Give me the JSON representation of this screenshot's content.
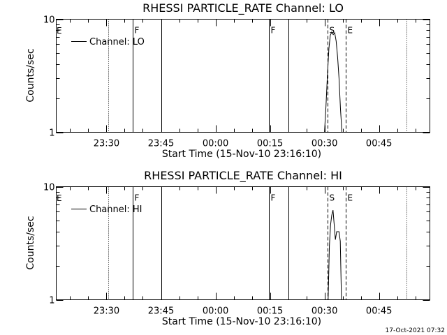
{
  "chart_data": [
    {
      "type": "line",
      "title": "RHESSI PARTICLE_RATE Channel: LO",
      "xlabel": "Start Time (15-Nov-10 23:16:10)",
      "ylabel": "Counts/sec",
      "y_scale": "log",
      "ylim": [
        1,
        10
      ],
      "y_ticks": [
        {
          "value": 1,
          "label": "1"
        },
        {
          "value": 10,
          "label": "10"
        }
      ],
      "xlim": [
        "23:16:10",
        "00:59:00"
      ],
      "x_ticks": [
        "23:30",
        "23:45",
        "00:00",
        "00:15",
        "00:30",
        "00:45"
      ],
      "legend": {
        "label": "Channel: LO",
        "placement": "top-left"
      },
      "series": [
        {
          "name": "Channel: LO",
          "x": [
            "00:30:00",
            "00:30:24",
            "00:30:48",
            "00:31:12",
            "00:31:36",
            "00:32:00",
            "00:32:24",
            "00:32:48",
            "00:33:12",
            "00:33:36",
            "00:34:00",
            "00:34:24",
            "00:34:48"
          ],
          "y": [
            1.0,
            1.7,
            3.2,
            5.5,
            7.2,
            7.7,
            7.3,
            7.6,
            6.4,
            4.6,
            3.0,
            1.6,
            1.0
          ]
        }
      ],
      "vertical_lines": [
        {
          "time": "23:30:30",
          "style": "dotted"
        },
        {
          "time": "23:37:15",
          "style": "solid",
          "label": "F"
        },
        {
          "time": "23:45:00",
          "style": "solid"
        },
        {
          "time": "00:14:45",
          "style": "solid",
          "label": "F"
        },
        {
          "time": "00:20:00",
          "style": "solid"
        },
        {
          "time": "00:30:45",
          "style": "dashed",
          "label": "S"
        },
        {
          "time": "00:35:45",
          "style": "dashed",
          "label": "E"
        },
        {
          "time": "00:52:30",
          "style": "dotted"
        }
      ],
      "left_edge_label": "E"
    },
    {
      "type": "line",
      "title": "RHESSI PARTICLE_RATE Channel: HI",
      "xlabel": "Start Time (15-Nov-10 23:16:10)",
      "ylabel": "Counts/sec",
      "y_scale": "log",
      "ylim": [
        1,
        10
      ],
      "y_ticks": [
        {
          "value": 1,
          "label": "1"
        },
        {
          "value": 10,
          "label": "10"
        }
      ],
      "xlim": [
        "23:16:10",
        "00:59:00"
      ],
      "x_ticks": [
        "23:30",
        "23:45",
        "00:00",
        "00:15",
        "00:30",
        "00:45"
      ],
      "legend": {
        "label": "Channel: HI",
        "placement": "top-left"
      },
      "series": [
        {
          "name": "Channel: HI",
          "x": [
            "00:31:00",
            "00:31:20",
            "00:31:40",
            "00:32:00",
            "00:32:20",
            "00:32:40",
            "00:33:00",
            "00:33:20",
            "00:33:40",
            "00:34:00",
            "00:34:20",
            "00:34:40"
          ],
          "y": [
            1.0,
            3.0,
            4.6,
            5.6,
            6.2,
            4.6,
            3.4,
            4.0,
            4.0,
            4.0,
            3.3,
            1.0
          ]
        }
      ],
      "vertical_lines": [
        {
          "time": "23:30:30",
          "style": "dotted"
        },
        {
          "time": "23:37:15",
          "style": "solid",
          "label": "F"
        },
        {
          "time": "23:45:00",
          "style": "solid"
        },
        {
          "time": "00:14:45",
          "style": "solid",
          "label": "F"
        },
        {
          "time": "00:20:00",
          "style": "solid"
        },
        {
          "time": "00:30:45",
          "style": "dashed",
          "label": "S"
        },
        {
          "time": "00:35:45",
          "style": "dashed",
          "label": "E"
        },
        {
          "time": "00:52:30",
          "style": "dotted"
        }
      ],
      "left_edge_label": "E"
    }
  ],
  "timestamp": "17-Oct-2021 07:32"
}
